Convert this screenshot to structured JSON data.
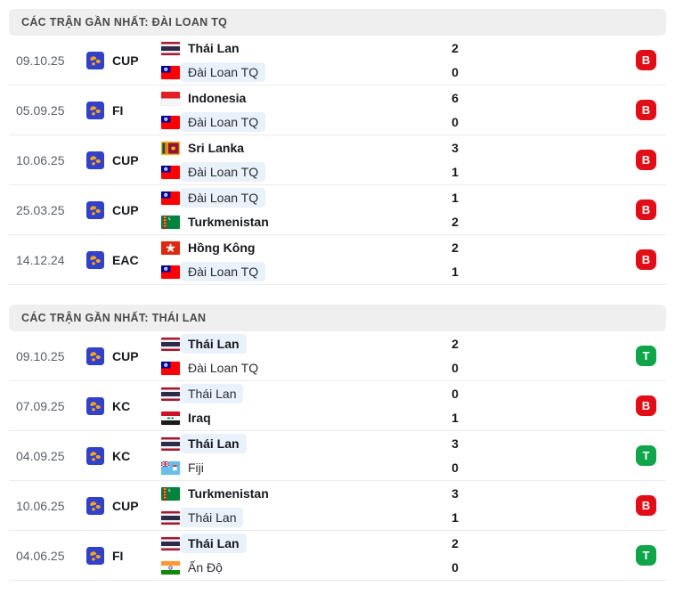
{
  "colors": {
    "win_badge": "#10a54a",
    "loss_badge": "#e10e17",
    "focus_pill": "#e9f1fa",
    "header_bg": "#efefef",
    "comp_icon_blue": "#3340c8",
    "comp_icon_gold": "#f2a51f"
  },
  "icons": {
    "competition": "world-icon"
  },
  "sections": [
    {
      "title": "CÁC TRẬN GẦN NHẤT: ĐÀI LOAN TQ",
      "matches": [
        {
          "date": "09.10.25",
          "competition": "CUP",
          "teams": [
            {
              "name": "Thái Lan",
              "flag": "thailand",
              "score": "2",
              "bold": true,
              "highlight": false
            },
            {
              "name": "Đài Loan TQ",
              "flag": "taiwan",
              "score": "0",
              "bold": false,
              "highlight": true
            }
          ],
          "result": {
            "label": "B",
            "type": "loss"
          }
        },
        {
          "date": "05.09.25",
          "competition": "FI",
          "teams": [
            {
              "name": "Indonesia",
              "flag": "indonesia",
              "score": "6",
              "bold": true,
              "highlight": false
            },
            {
              "name": "Đài Loan TQ",
              "flag": "taiwan",
              "score": "0",
              "bold": false,
              "highlight": true
            }
          ],
          "result": {
            "label": "B",
            "type": "loss"
          }
        },
        {
          "date": "10.06.25",
          "competition": "CUP",
          "teams": [
            {
              "name": "Sri Lanka",
              "flag": "srilanka",
              "score": "3",
              "bold": true,
              "highlight": false
            },
            {
              "name": "Đài Loan TQ",
              "flag": "taiwan",
              "score": "1",
              "bold": false,
              "highlight": true
            }
          ],
          "result": {
            "label": "B",
            "type": "loss"
          }
        },
        {
          "date": "25.03.25",
          "competition": "CUP",
          "teams": [
            {
              "name": "Đài Loan TQ",
              "flag": "taiwan",
              "score": "1",
              "bold": false,
              "highlight": true
            },
            {
              "name": "Turkmenistan",
              "flag": "turkmenistan",
              "score": "2",
              "bold": true,
              "highlight": false
            }
          ],
          "result": {
            "label": "B",
            "type": "loss"
          }
        },
        {
          "date": "14.12.24",
          "competition": "EAC",
          "teams": [
            {
              "name": "Hồng Kông",
              "flag": "hongkong",
              "score": "2",
              "bold": true,
              "highlight": false
            },
            {
              "name": "Đài Loan TQ",
              "flag": "taiwan",
              "score": "1",
              "bold": false,
              "highlight": true
            }
          ],
          "result": {
            "label": "B",
            "type": "loss"
          }
        }
      ]
    },
    {
      "title": "CÁC TRẬN GẦN NHẤT: THÁI LAN",
      "matches": [
        {
          "date": "09.10.25",
          "competition": "CUP",
          "teams": [
            {
              "name": "Thái Lan",
              "flag": "thailand",
              "score": "2",
              "bold": true,
              "highlight": true
            },
            {
              "name": "Đài Loan TQ",
              "flag": "taiwan",
              "score": "0",
              "bold": false,
              "highlight": false
            }
          ],
          "result": {
            "label": "T",
            "type": "win"
          }
        },
        {
          "date": "07.09.25",
          "competition": "KC",
          "teams": [
            {
              "name": "Thái Lan",
              "flag": "thailand",
              "score": "0",
              "bold": false,
              "highlight": true
            },
            {
              "name": "Iraq",
              "flag": "iraq",
              "score": "1",
              "bold": true,
              "highlight": false
            }
          ],
          "result": {
            "label": "B",
            "type": "loss"
          }
        },
        {
          "date": "04.09.25",
          "competition": "KC",
          "teams": [
            {
              "name": "Thái Lan",
              "flag": "thailand",
              "score": "3",
              "bold": true,
              "highlight": true
            },
            {
              "name": "Fiji",
              "flag": "fiji",
              "score": "0",
              "bold": false,
              "highlight": false
            }
          ],
          "result": {
            "label": "T",
            "type": "win"
          }
        },
        {
          "date": "10.06.25",
          "competition": "CUP",
          "teams": [
            {
              "name": "Turkmenistan",
              "flag": "turkmenistan",
              "score": "3",
              "bold": true,
              "highlight": false
            },
            {
              "name": "Thái Lan",
              "flag": "thailand",
              "score": "1",
              "bold": false,
              "highlight": true
            }
          ],
          "result": {
            "label": "B",
            "type": "loss"
          }
        },
        {
          "date": "04.06.25",
          "competition": "FI",
          "teams": [
            {
              "name": "Thái Lan",
              "flag": "thailand",
              "score": "2",
              "bold": true,
              "highlight": true
            },
            {
              "name": "Ấn Độ",
              "flag": "india",
              "score": "0",
              "bold": false,
              "highlight": false
            }
          ],
          "result": {
            "label": "T",
            "type": "win"
          }
        }
      ]
    }
  ]
}
